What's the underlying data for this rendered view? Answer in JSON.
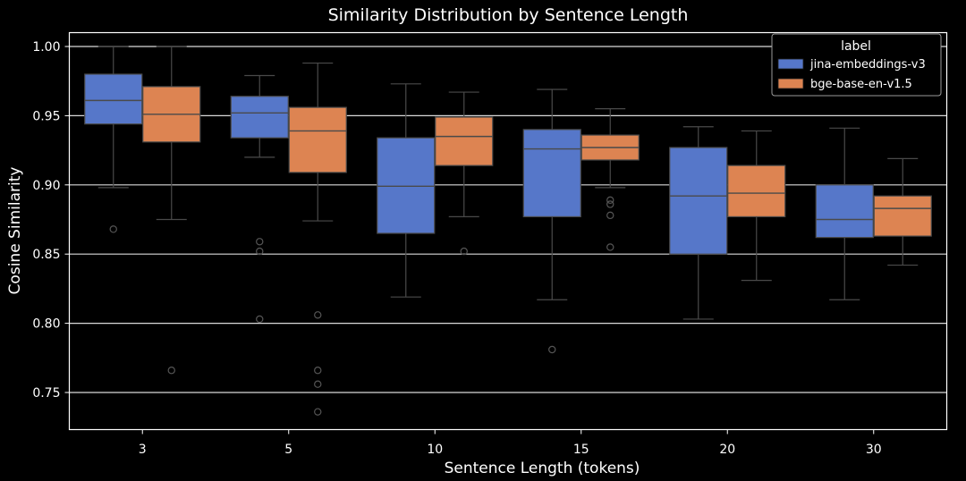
{
  "chart_data": {
    "type": "box",
    "title": "Similarity Distribution by Sentence Length",
    "xlabel": "Sentence Length (tokens)",
    "ylabel": "Cosine Similarity",
    "categories": [
      "3",
      "5",
      "10",
      "15",
      "20",
      "30"
    ],
    "ylim": [
      0.725,
      1.015
    ],
    "yticks": [
      0.75,
      0.8,
      0.85,
      0.9,
      0.95,
      1.0
    ],
    "ytick_labels": [
      "0.75",
      "0.80",
      "0.85",
      "0.90",
      "0.95",
      "1.00"
    ],
    "grid": "horizontal",
    "legend": {
      "title": "label",
      "placement": "top-right"
    },
    "series": [
      {
        "name": "jina-embeddings-v3",
        "color": "#5677c9",
        "boxes": [
          {
            "whislo": 0.898,
            "q1": 0.944,
            "med": 0.961,
            "q3": 0.98,
            "whishi": 1.0,
            "fliers": [
              0.868
            ]
          },
          {
            "whislo": 0.92,
            "q1": 0.934,
            "med": 0.952,
            "q3": 0.964,
            "whishi": 0.979,
            "fliers": [
              0.859,
              0.852,
              0.803
            ]
          },
          {
            "whislo": 0.819,
            "q1": 0.865,
            "med": 0.899,
            "q3": 0.934,
            "whishi": 0.973,
            "fliers": []
          },
          {
            "whislo": 0.817,
            "q1": 0.877,
            "med": 0.926,
            "q3": 0.94,
            "whishi": 0.969,
            "fliers": [
              0.781
            ]
          },
          {
            "whislo": 0.803,
            "q1": 0.85,
            "med": 0.892,
            "q3": 0.927,
            "whishi": 0.942,
            "fliers": []
          },
          {
            "whislo": 0.817,
            "q1": 0.862,
            "med": 0.875,
            "q3": 0.9,
            "whishi": 0.941,
            "fliers": []
          }
        ]
      },
      {
        "name": "bge-base-en-v1.5",
        "color": "#dd8452",
        "boxes": [
          {
            "whislo": 0.875,
            "q1": 0.931,
            "med": 0.951,
            "q3": 0.971,
            "whishi": 1.0,
            "fliers": [
              0.766
            ]
          },
          {
            "whislo": 0.874,
            "q1": 0.909,
            "med": 0.939,
            "q3": 0.956,
            "whishi": 0.988,
            "fliers": [
              0.806,
              0.766,
              0.756,
              0.736
            ]
          },
          {
            "whislo": 0.877,
            "q1": 0.914,
            "med": 0.935,
            "q3": 0.949,
            "whishi": 0.967,
            "fliers": [
              0.852
            ]
          },
          {
            "whislo": 0.898,
            "q1": 0.918,
            "med": 0.927,
            "q3": 0.936,
            "whishi": 0.955,
            "fliers": [
              0.889,
              0.886,
              0.878,
              0.855
            ]
          },
          {
            "whislo": 0.831,
            "q1": 0.877,
            "med": 0.894,
            "q3": 0.914,
            "whishi": 0.939,
            "fliers": []
          },
          {
            "whislo": 0.842,
            "q1": 0.863,
            "med": 0.883,
            "q3": 0.892,
            "whishi": 0.919,
            "fliers": []
          }
        ]
      }
    ]
  }
}
